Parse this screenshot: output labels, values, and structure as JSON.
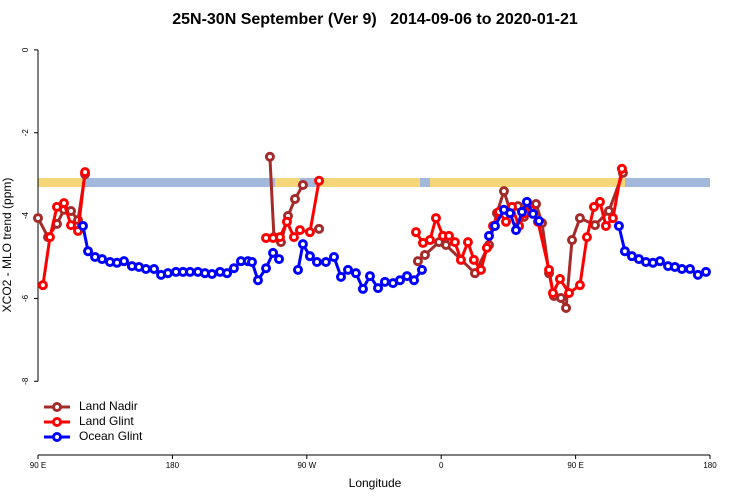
{
  "chart_data": {
    "type": "line",
    "title": "25N-30N September (Ver 9)   2014-09-06 to 2020-01-21",
    "x_label": "Longitude",
    "y_label": "XCO2 - MLO trend (ppm)",
    "xlim": [
      90,
      540
    ],
    "ylim": [
      -9.78,
      0.36
    ],
    "xticks": [
      {
        "value": 90,
        "label": "90 E"
      },
      180,
      {
        "value": 270,
        "label": "90 W"
      },
      {
        "value": 360,
        "label": "0"
      },
      {
        "value": 450,
        "label": "90 E"
      },
      {
        "value": 540,
        "label": "180"
      }
    ],
    "yticks": [
      0,
      -2,
      -4,
      -6,
      -8
    ],
    "legend": "bottom-left",
    "series": [
      {
        "name": "Land Nadir",
        "color": "#a52a2a",
        "x": [
          90,
          96.7,
          102.7,
          107.4,
          112.1,
          116.8,
          121.5,
          null,
          245.3,
          248,
          252.7,
          257.4,
          262.1,
          267.4,
          null,
          278.2,
          null,
          344.4,
          349.1,
          358.5,
          363.2,
          382.6,
          392,
          397.3,
          402,
          406.7,
          411.4,
          415.4,
          419.4,
          423.5,
          427.5,
          432.2,
          435.5,
          440.2,
          443.6,
          447.6,
          452.9,
          463,
          472.3,
          481.7
        ],
        "values": [
          -4.06,
          -4.52,
          -4.2,
          -3.86,
          -3.89,
          -4.11,
          -3.0,
          null,
          -2.58,
          -4.52,
          -4.64,
          -4.01,
          -3.6,
          -3.26,
          null,
          -4.32,
          null,
          -5.1,
          -4.95,
          -4.64,
          -4.71,
          -5.39,
          -4.71,
          -3.94,
          -3.41,
          -3.94,
          -3.77,
          -4.03,
          -3.79,
          -3.72,
          -4.18,
          -5.39,
          -5.94,
          -5.99,
          -6.23,
          -4.59,
          -4.06,
          -4.23,
          -3.89,
          -2.97
        ]
      },
      {
        "name": "Land Glint",
        "color": "#ff0000",
        "x": [
          93.3,
          98,
          102.7,
          107.4,
          112.1,
          116.8,
          121.5,
          null,
          242.7,
          247.4,
          252,
          256.7,
          261.4,
          265.4,
          272.1,
          278.2,
          null,
          343.1,
          347.8,
          352.5,
          356.5,
          361.2,
          365.2,
          369.2,
          373.2,
          377.9,
          381.9,
          386.6,
          390.6,
          394.7,
          398.7,
          403.4,
          407.4,
          412.1,
          416.1,
          420.1,
          424.8,
          432.2,
          434.8,
          439.5,
          445.6,
          452.9,
          457.6,
          462.3,
          466.3,
          470.3,
          475,
          481
        ],
        "values": [
          -5.68,
          -4.52,
          -3.79,
          -3.7,
          -4.23,
          -4.37,
          -2.95,
          null,
          -4.54,
          -4.54,
          -4.52,
          -4.15,
          -4.52,
          -4.35,
          -4.4,
          -3.16,
          null,
          -4.4,
          -4.66,
          -4.59,
          -4.06,
          -4.49,
          -4.49,
          -4.64,
          -5.07,
          -4.64,
          -5.07,
          -5.31,
          -4.78,
          -4.25,
          -3.91,
          -4.15,
          -3.79,
          -4.25,
          -3.94,
          -3.86,
          -4.15,
          -5.31,
          -5.87,
          -5.53,
          -5.87,
          -5.68,
          -4.52,
          -3.79,
          -3.67,
          -4.25,
          -4.06,
          -2.87
        ]
      },
      {
        "name": "Ocean Glint",
        "color": "#0000ff",
        "x": [
          120.1,
          123.5,
          128.2,
          132.9,
          138.2,
          142.9,
          147.6,
          152.9,
          157.6,
          162.3,
          167.7,
          172.4,
          177,
          182.4,
          187.1,
          191.8,
          197.1,
          201.8,
          206.5,
          211.9,
          216.6,
          221.2,
          225.9,
          230.6,
          233.3,
          237.3,
          242.7,
          247.4,
          251.4,
          null,
          264.1,
          267.4,
          272.1,
          276.8,
          282.8,
          288.2,
          292.9,
          297.6,
          302.9,
          307.6,
          312.3,
          317.7,
          322.3,
          327.7,
          332.4,
          337.1,
          341.8,
          347.1,
          null,
          392,
          396,
          402,
          406.1,
          410.1,
          414.1,
          417.4,
          421.5,
          425.5,
          null,
          479,
          483,
          487.7,
          492.4,
          497.1,
          501.8,
          506.5,
          511.9,
          516.5,
          521.2,
          526.6,
          531.9,
          537.3
        ],
        "values": [
          -4.25,
          -4.86,
          -5.0,
          -5.05,
          -5.12,
          -5.14,
          -5.1,
          -5.22,
          -5.24,
          -5.29,
          -5.29,
          -5.43,
          -5.39,
          -5.36,
          -5.36,
          -5.36,
          -5.36,
          -5.39,
          -5.41,
          -5.36,
          -5.39,
          -5.27,
          -5.1,
          -5.1,
          -5.12,
          -5.56,
          -5.27,
          -4.9,
          -5.05,
          null,
          -5.31,
          -4.69,
          -4.98,
          -5.12,
          -5.12,
          -5.0,
          -5.48,
          -5.31,
          -5.39,
          -5.77,
          -5.46,
          -5.75,
          -5.6,
          -5.63,
          -5.56,
          -5.46,
          -5.56,
          -5.31,
          null,
          -4.49,
          -4.25,
          -3.86,
          -3.94,
          -4.35,
          -3.91,
          -3.67,
          -3.96,
          -4.13,
          null,
          -4.25,
          -4.86,
          -4.98,
          -5.05,
          -5.12,
          -5.14,
          -5.1,
          -5.22,
          -5.24,
          -5.29,
          -5.29,
          -5.43,
          -5.36
        ]
      }
    ]
  }
}
